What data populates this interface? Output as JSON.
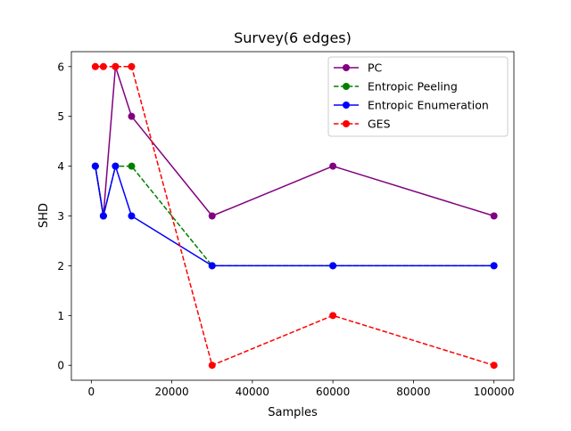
{
  "chart_data": {
    "type": "line",
    "title": "Survey(6 edges)",
    "xlabel": "Samples",
    "ylabel": "SHD",
    "xlim": [
      -4950,
      104950
    ],
    "ylim": [
      -0.3,
      6.3
    ],
    "xticks": [
      0,
      20000,
      40000,
      60000,
      80000,
      100000
    ],
    "xtick_labels": [
      "0",
      "20000",
      "40000",
      "60000",
      "80000",
      "100000"
    ],
    "yticks": [
      0,
      1,
      2,
      3,
      4,
      5,
      6
    ],
    "ytick_labels": [
      "0",
      "1",
      "2",
      "3",
      "4",
      "5",
      "6"
    ],
    "grid": false,
    "legend_position": "top-right",
    "x": [
      1000,
      3000,
      6000,
      10000,
      30000,
      60000,
      100000
    ],
    "series": [
      {
        "name": "PC",
        "values": [
          4,
          3,
          6,
          5,
          3,
          4,
          3
        ],
        "color": "#800080",
        "dash": "solid"
      },
      {
        "name": "Entropic Peeling",
        "values": [
          4,
          3,
          4,
          4,
          2,
          2,
          2
        ],
        "color": "#008000",
        "dash": "dashed"
      },
      {
        "name": "Entropic Enumeration",
        "values": [
          4,
          3,
          4,
          3,
          2,
          2,
          2
        ],
        "color": "#0000ff",
        "dash": "solid"
      },
      {
        "name": "GES",
        "values": [
          6,
          6,
          6,
          6,
          0,
          1,
          0
        ],
        "color": "#ff0000",
        "dash": "dashed"
      }
    ]
  }
}
